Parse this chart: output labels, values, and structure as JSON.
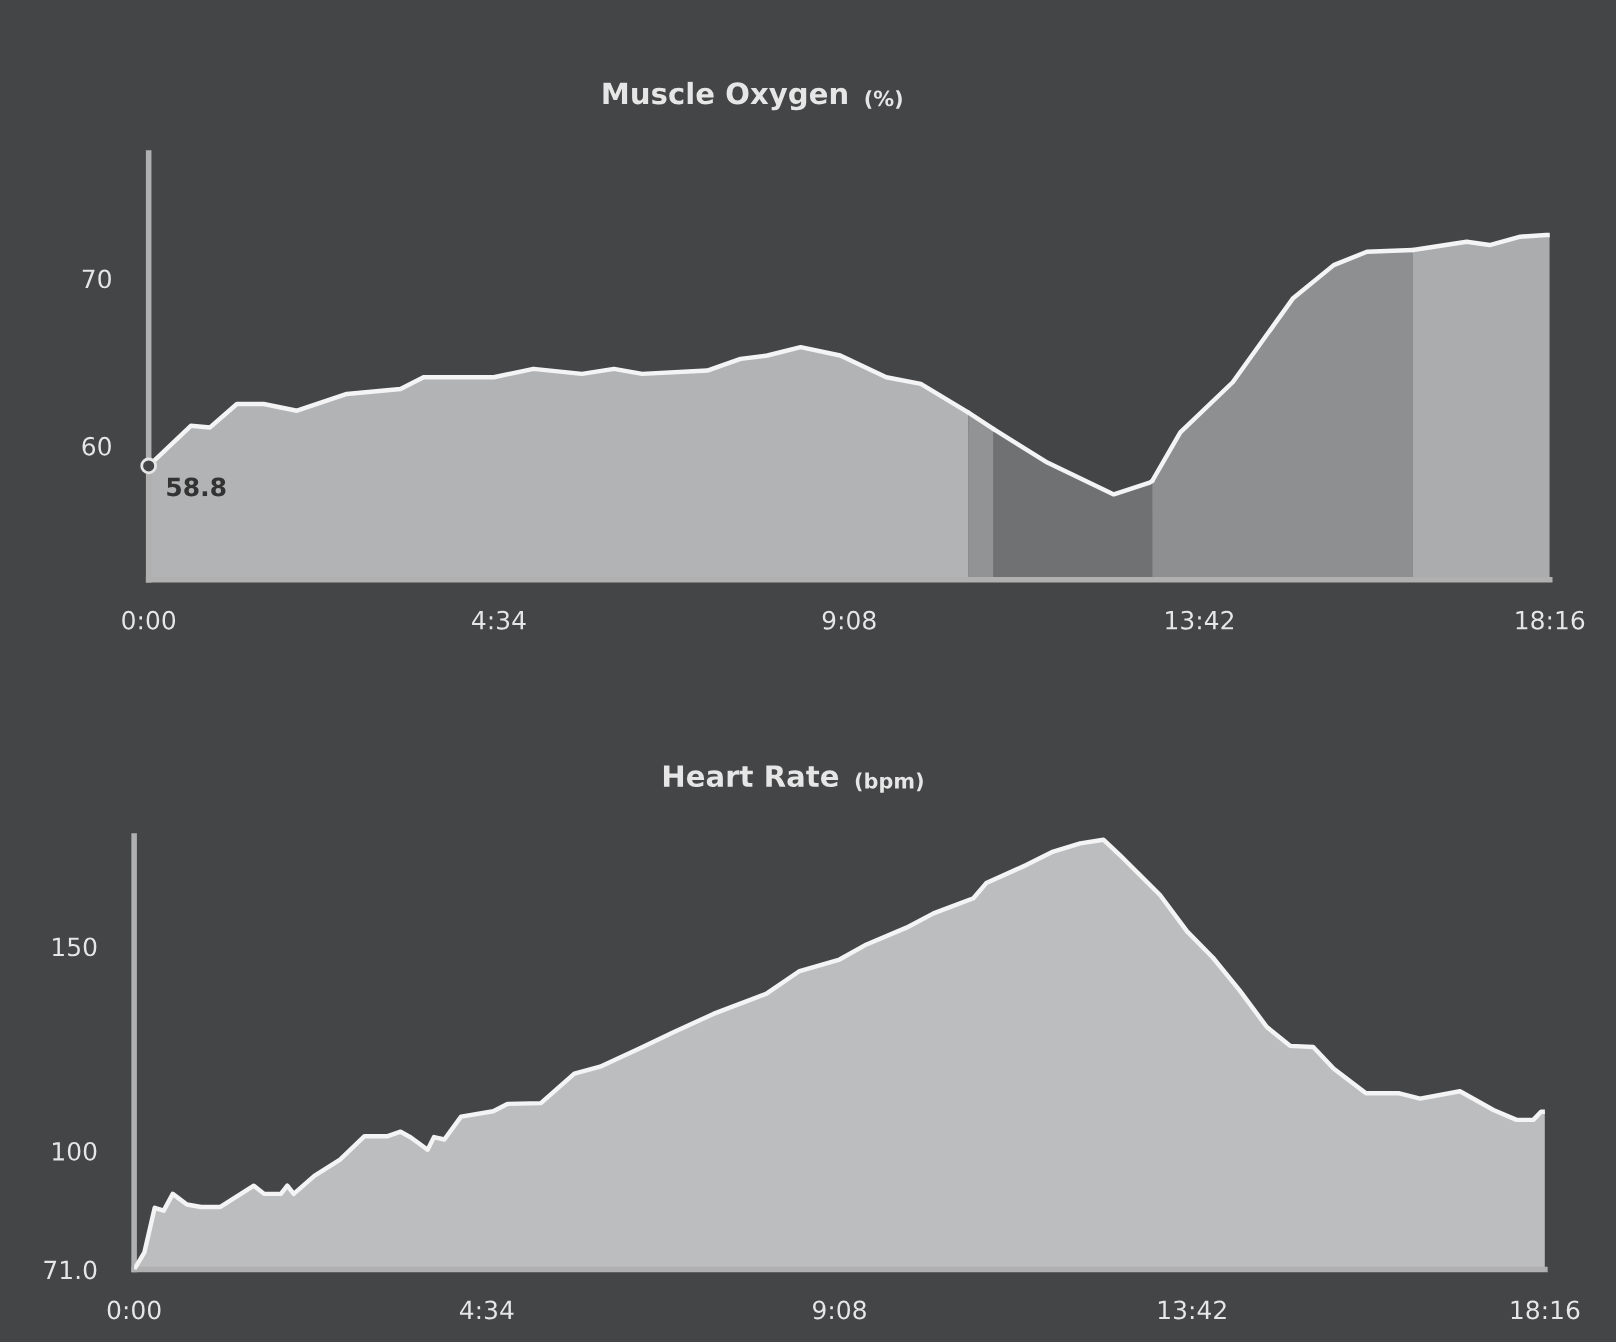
{
  "chart_data": [
    {
      "type": "area",
      "title": "Muscle Oxygen",
      "subtitle": "(%)",
      "xlim": [
        0,
        1096
      ],
      "ylim": [
        52,
        77.5
      ],
      "yticks": [
        60,
        70
      ],
      "xticks": [
        {
          "value": 0,
          "label": "0:00"
        },
        {
          "value": 274,
          "label": "4:34"
        },
        {
          "value": 548,
          "label": "9:08"
        },
        {
          "value": 822,
          "label": "13:42"
        },
        {
          "value": 1096,
          "label": "18:16"
        }
      ],
      "grid": false,
      "legend": false,
      "annotations": [
        {
          "text": "58.8",
          "x": 0,
          "y": 58.8
        }
      ],
      "series": [
        {
          "color": "#b2b3b5",
          "x": [
            0,
            33,
            48,
            69,
            90,
            116,
            155,
            197,
            215,
            270,
            301,
            339,
            364,
            386,
            437,
            463,
            484,
            510,
            541,
            577,
            604,
            641
          ],
          "values": [
            58.8,
            61.2,
            61.1,
            62.5,
            62.5,
            62.1,
            63.1,
            63.4,
            64.1,
            64.1,
            64.6,
            64.3,
            64.6,
            64.3,
            64.5,
            65.2,
            65.4,
            65.9,
            65.4,
            64.1,
            63.7,
            62.0
          ]
        },
        {
          "color": "#929395",
          "x": [
            641,
            661
          ],
          "values": [
            62.0,
            61.0
          ]
        },
        {
          "color": "#707173",
          "x": [
            661,
            703,
            755,
            783,
            785
          ],
          "values": [
            61.0,
            59.0,
            57.1,
            57.8,
            57.9
          ]
        },
        {
          "color": "#8e8f91",
          "x": [
            785,
            807,
            848,
            895,
            927,
            953,
            989
          ],
          "values": [
            57.9,
            60.8,
            63.8,
            68.8,
            70.8,
            71.6,
            71.7
          ]
        },
        {
          "color": "#abacae",
          "x": [
            989,
            1031,
            1049,
            1073,
            1093,
            1096
          ],
          "values": [
            71.7,
            72.2,
            72.0,
            72.5,
            72.6,
            72.6
          ]
        }
      ]
    },
    {
      "type": "area",
      "title": "Heart Rate",
      "subtitle": "(bpm)",
      "xlim": [
        0,
        1096
      ],
      "ylim": [
        71,
        177
      ],
      "yticks": [
        {
          "value": 71,
          "label": "71.0"
        },
        100,
        150
      ],
      "xticks": [
        {
          "value": 0,
          "label": "0:00"
        },
        {
          "value": 274,
          "label": "4:34"
        },
        {
          "value": 548,
          "label": "9:08"
        },
        {
          "value": 822,
          "label": "13:42"
        },
        {
          "value": 1096,
          "label": "18:16"
        }
      ],
      "grid": false,
      "legend": false,
      "series": [
        {
          "color": "#bcbdbf",
          "x": [
            0,
            8,
            16,
            23,
            30,
            41,
            52,
            67,
            93,
            101,
            114,
            119,
            124,
            140,
            160,
            179,
            197,
            207,
            215,
            228,
            233,
            241,
            254,
            279,
            290,
            316,
            342,
            362,
            393,
            419,
            450,
            491,
            517,
            548,
            569,
            600,
            621,
            652,
            662,
            693,
            714,
            735,
            753,
            766,
            797,
            818,
            838,
            859,
            880,
            898,
            916,
            932,
            957,
            983,
            999,
            1030,
            1056,
            1074,
            1087,
            1093,
            1096
          ],
          "values": [
            71.0,
            75.2,
            86.1,
            85.4,
            89.5,
            86.9,
            86.3,
            86.3,
            91.5,
            89.5,
            89.5,
            91.5,
            89.5,
            93.9,
            97.9,
            103.6,
            103.6,
            104.7,
            103.3,
            100.3,
            103.4,
            102.8,
            108.4,
            109.7,
            111.5,
            111.7,
            118.9,
            120.6,
            125.1,
            129.0,
            133.5,
            138.4,
            144.0,
            146.8,
            150.5,
            154.6,
            158.1,
            161.8,
            165.5,
            169.9,
            173.2,
            175.2,
            176.1,
            172.3,
            162.6,
            153.7,
            147.3,
            139.2,
            130.3,
            125.7,
            125.4,
            120.1,
            114.1,
            114.1,
            112.8,
            114.6,
            110.0,
            107.6,
            107.6,
            109.6,
            109.6
          ]
        }
      ]
    }
  ]
}
